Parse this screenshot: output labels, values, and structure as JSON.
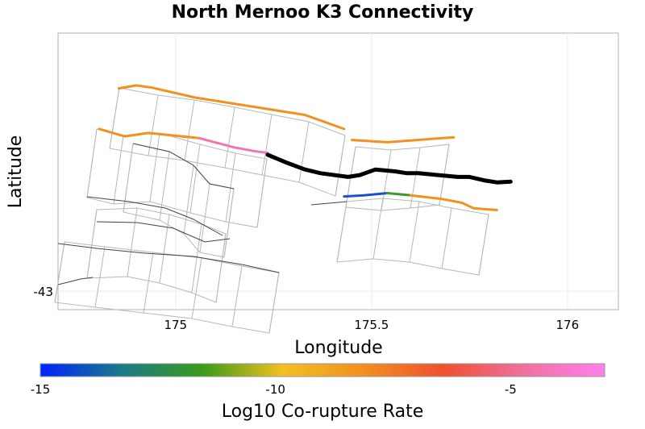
{
  "chart_data": {
    "type": "map",
    "title": "North Mernoo K3 Connectivity",
    "xlabel": "Longitude",
    "ylabel": "Latitude",
    "xlim": [
      174.7,
      176.13
    ],
    "ylim": [
      -43.05,
      -42.3
    ],
    "x_ticks": [
      {
        "value": 175,
        "label": "175"
      },
      {
        "value": 175.5,
        "label": "175.5"
      },
      {
        "value": 176,
        "label": "176"
      }
    ],
    "y_ticks": [
      {
        "value": -43,
        "label": "-43"
      }
    ],
    "grid": true,
    "colorbar": {
      "label": "Log10 Co-rupture Rate",
      "range": [
        -15,
        -3
      ],
      "ticks": [
        {
          "value": -15,
          "label": "-15"
        },
        {
          "value": -10,
          "label": "-10"
        },
        {
          "value": -5,
          "label": "-5"
        }
      ],
      "colors": [
        "#0022ff",
        "#1a7a8a",
        "#3a9a1a",
        "#f2c020",
        "#f29020",
        "#f05030",
        "#f070a0",
        "#ff80ee"
      ]
    },
    "target_fault": {
      "name": "North Mernoo K3",
      "color": "#000000",
      "trace": [
        [
          175.235,
          -42.63
        ],
        [
          175.28,
          -42.65
        ],
        [
          175.33,
          -42.67
        ],
        [
          175.37,
          -42.68
        ],
        [
          175.44,
          -42.69
        ],
        [
          175.47,
          -42.685
        ],
        [
          175.51,
          -42.67
        ],
        [
          175.56,
          -42.675
        ],
        [
          175.59,
          -42.68
        ],
        [
          175.62,
          -42.68
        ],
        [
          175.67,
          -42.685
        ],
        [
          175.72,
          -42.69
        ],
        [
          175.75,
          -42.69
        ],
        [
          175.79,
          -42.7
        ],
        [
          175.82,
          -42.705
        ],
        [
          175.855,
          -42.703
        ]
      ]
    },
    "colored_traces": [
      {
        "value": -7.6,
        "color": "#f29020",
        "trace": [
          [
            174.855,
            -42.45
          ],
          [
            174.9,
            -42.442
          ],
          [
            174.94,
            -42.448
          ],
          [
            175.05,
            -42.475
          ],
          [
            175.2,
            -42.5
          ],
          [
            175.33,
            -42.522
          ],
          [
            175.43,
            -42.56
          ]
        ]
      },
      {
        "value": -7.6,
        "color": "#f29020",
        "trace": [
          [
            174.805,
            -42.56
          ],
          [
            174.87,
            -42.58
          ],
          [
            174.93,
            -42.571
          ],
          [
            175.06,
            -42.585
          ]
        ]
      },
      {
        "value": -4.0,
        "color": "#f075b0",
        "trace": [
          [
            175.06,
            -42.585
          ],
          [
            175.15,
            -42.61
          ],
          [
            175.2,
            -42.62
          ],
          [
            175.235,
            -42.625
          ]
        ]
      },
      {
        "value": -7.5,
        "color": "#f29020",
        "trace": [
          [
            175.45,
            -42.59
          ],
          [
            175.54,
            -42.596
          ],
          [
            175.68,
            -42.585
          ],
          [
            175.71,
            -42.583
          ]
        ]
      },
      {
        "value": -14.5,
        "color": "#1a4fd0",
        "trace": [
          [
            175.43,
            -42.743
          ],
          [
            175.48,
            -42.74
          ],
          [
            175.54,
            -42.734
          ]
        ]
      },
      {
        "value": -12.2,
        "color": "#3a9a2a",
        "trace": [
          [
            175.54,
            -42.734
          ],
          [
            175.6,
            -42.74
          ]
        ]
      },
      {
        "value": -7.8,
        "color": "#f29020",
        "trace": [
          [
            175.6,
            -42.74
          ],
          [
            175.68,
            -42.75
          ],
          [
            175.73,
            -42.76
          ],
          [
            175.76,
            -42.775
          ],
          [
            175.82,
            -42.78
          ]
        ]
      }
    ]
  }
}
